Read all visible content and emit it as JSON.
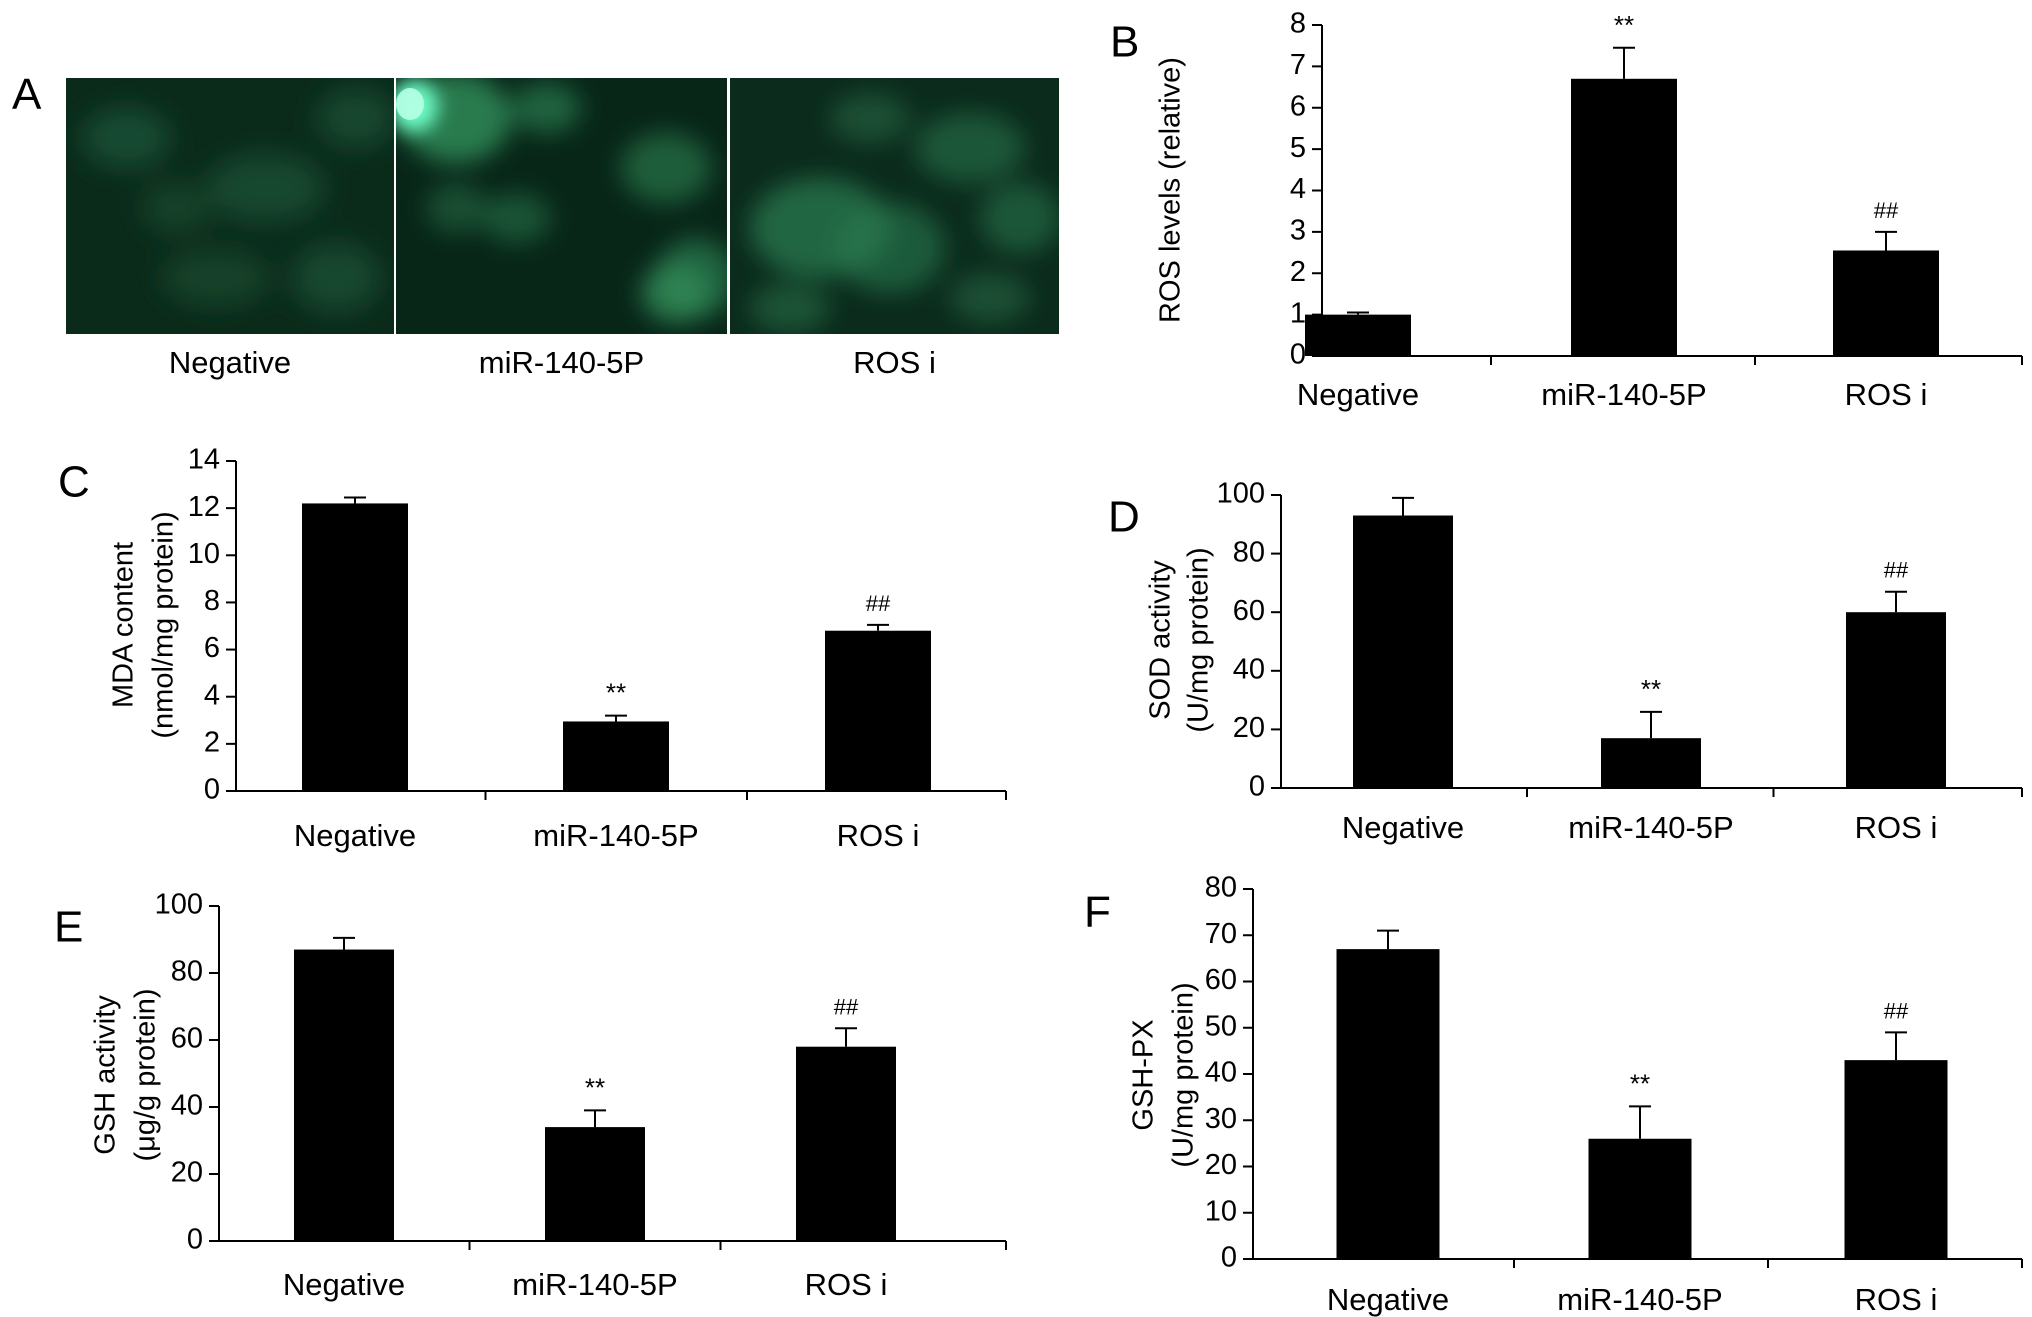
{
  "panel_a": {
    "letter": "A",
    "images": [
      {
        "label": "Negative"
      },
      {
        "label": "miR-140-5P"
      },
      {
        "label": "ROS i"
      }
    ]
  },
  "chart_data": [
    {
      "letter": "B",
      "type": "bar",
      "ylabel": [
        "ROS levels (relative)"
      ],
      "ylim": [
        0,
        8
      ],
      "yticks": [
        0,
        1,
        2,
        3,
        4,
        5,
        6,
        7,
        8
      ],
      "categories": [
        "Negative",
        "miR-140-5P",
        "ROS i"
      ],
      "values": [
        1.0,
        6.7,
        2.55
      ],
      "errors": [
        0.05,
        0.75,
        0.45
      ],
      "annotations": [
        "",
        "**",
        "##"
      ]
    },
    {
      "letter": "C",
      "type": "bar",
      "ylabel": [
        "MDA content",
        "(nmol/mg protein)"
      ],
      "ylim": [
        0,
        14
      ],
      "yticks": [
        0,
        2,
        4,
        6,
        8,
        10,
        12,
        14
      ],
      "categories": [
        "Negative",
        "miR-140-5P",
        "ROS i"
      ],
      "values": [
        12.2,
        2.95,
        6.8
      ],
      "errors": [
        0.25,
        0.25,
        0.25
      ],
      "annotations": [
        "",
        "**",
        "##"
      ]
    },
    {
      "letter": "D",
      "type": "bar",
      "ylabel": [
        "SOD activity",
        "(U/mg protein)"
      ],
      "ylim": [
        0,
        100
      ],
      "yticks": [
        0,
        20,
        40,
        60,
        80,
        100
      ],
      "categories": [
        "Negative",
        "miR-140-5P",
        "ROS i"
      ],
      "values": [
        93,
        17,
        60
      ],
      "errors": [
        6,
        9,
        7
      ],
      "annotations": [
        "",
        "**",
        "##"
      ]
    },
    {
      "letter": "E",
      "type": "bar",
      "ylabel": [
        "GSH activity",
        "(μg/g protein)"
      ],
      "ylim": [
        0,
        100
      ],
      "yticks": [
        0,
        20,
        40,
        60,
        80,
        100
      ],
      "categories": [
        "Negative",
        "miR-140-5P",
        "ROS i"
      ],
      "values": [
        87,
        34,
        58
      ],
      "errors": [
        3.5,
        5,
        5.5
      ],
      "annotations": [
        "",
        "**",
        "##"
      ]
    },
    {
      "letter": "F",
      "type": "bar",
      "ylabel": [
        "GSH-PX",
        "(U/mg protein)"
      ],
      "ylim": [
        0,
        80
      ],
      "yticks": [
        0,
        10,
        20,
        30,
        40,
        50,
        60,
        70,
        80
      ],
      "categories": [
        "Negative",
        "miR-140-5P",
        "ROS i"
      ],
      "values": [
        67,
        26,
        43
      ],
      "errors": [
        4,
        7,
        6
      ],
      "annotations": [
        "",
        "**",
        "##"
      ]
    }
  ]
}
